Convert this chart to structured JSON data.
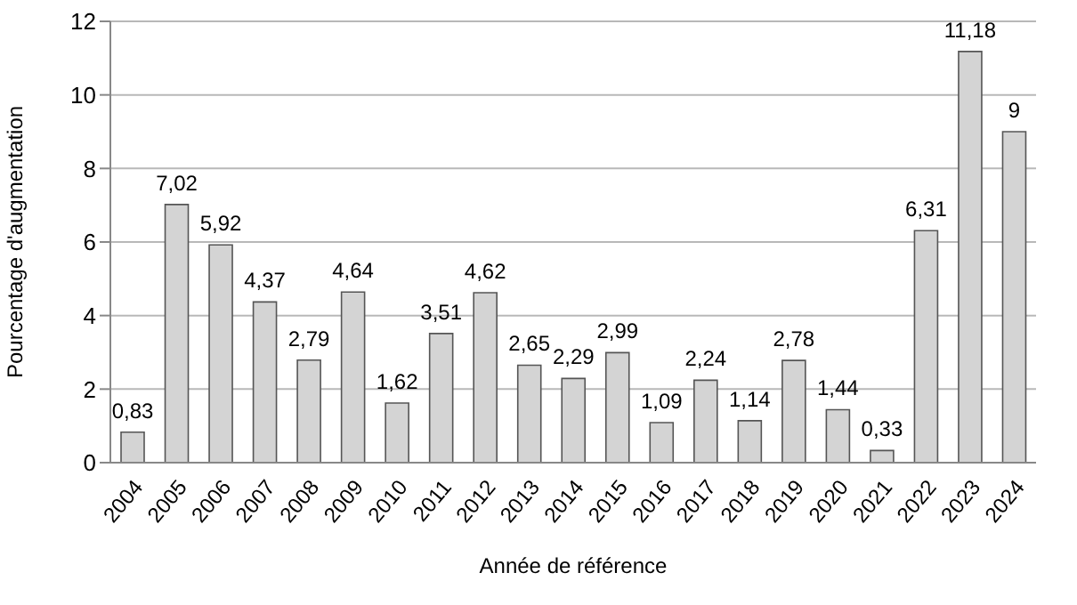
{
  "chart_data": {
    "type": "bar",
    "xlabel": "Année de référence",
    "ylabel": "Pourcentage d'augmentation",
    "categories": [
      "2004",
      "2005",
      "2006",
      "2007",
      "2008",
      "2009",
      "2010",
      "2011",
      "2012",
      "2013",
      "2014",
      "2015",
      "2016",
      "2017",
      "2018",
      "2019",
      "2020",
      "2021",
      "2022",
      "2023",
      "2024"
    ],
    "values": [
      0.83,
      7.02,
      5.92,
      4.37,
      2.79,
      4.64,
      1.62,
      3.51,
      4.62,
      2.65,
      2.29,
      2.99,
      1.09,
      2.24,
      1.14,
      2.78,
      1.44,
      0.33,
      6.31,
      11.18,
      9
    ],
    "value_labels": [
      "0,83",
      "7,02",
      "5,92",
      "4,37",
      "2,79",
      "4,64",
      "1,62",
      "3,51",
      "4,62",
      "2,65",
      "2,29",
      "2,99",
      "1,09",
      "2,24",
      "1,14",
      "2,78",
      "1,44",
      "0,33",
      "6,31",
      "11,18",
      "9"
    ],
    "color": "#d4d4d4",
    "ylim": [
      0,
      12
    ],
    "yticks": [
      0,
      2,
      4,
      6,
      8,
      10,
      12
    ],
    "grid": "y"
  }
}
